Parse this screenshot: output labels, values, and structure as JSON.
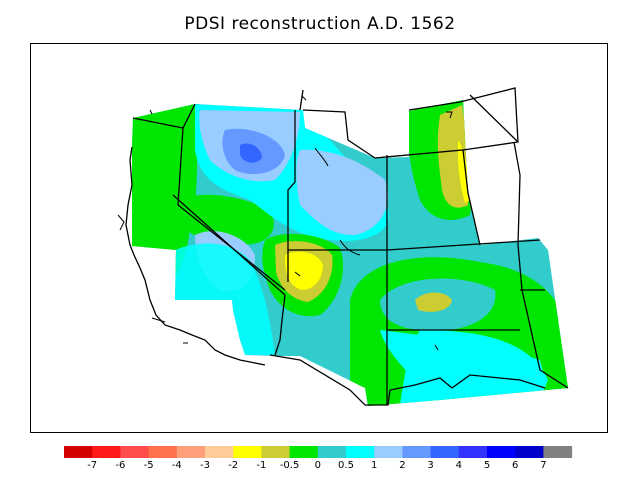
{
  "title": "PDSI reconstruction A.D. 1562",
  "legend": {
    "colors": [
      "#d40000",
      "#ff1a1a",
      "#ff4d4d",
      "#ff704d",
      "#ffa07a",
      "#ffcc99",
      "#ffff00",
      "#cccc33",
      "#00e600",
      "#33cccc",
      "#00ffff",
      "#99ccff",
      "#6699ff",
      "#3366ff",
      "#3333ff",
      "#0000ff",
      "#0000cc",
      "#808080"
    ],
    "ticks": [
      "-7",
      "-6",
      "-5",
      "-4",
      "-3",
      "-2",
      "-1",
      "-0.5",
      "0",
      "0.5",
      "1",
      "2",
      "3",
      "4",
      "5",
      "6",
      "7"
    ]
  }
}
